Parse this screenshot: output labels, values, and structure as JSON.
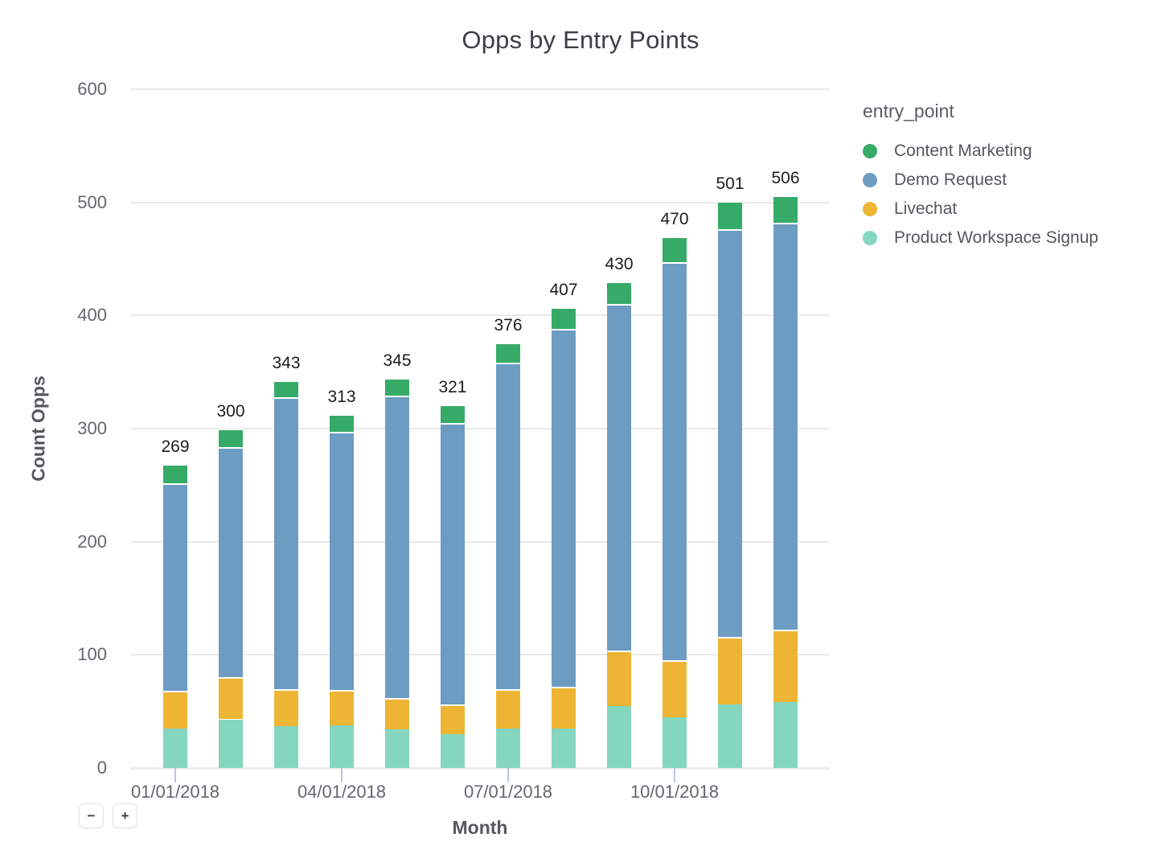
{
  "chart": {
    "title": "Opps by Entry Points",
    "xlabel": "Month",
    "ylabel": "Count Opps"
  },
  "legend": {
    "title": "entry_point",
    "items": [
      {
        "label": "Content Marketing",
        "color": "#36ab68"
      },
      {
        "label": "Demo Request",
        "color": "#6d9cc3"
      },
      {
        "label": "Livechat",
        "color": "#edb533"
      },
      {
        "label": "Product Workspace Signup",
        "color": "#85d6bf"
      }
    ]
  },
  "controls": {
    "zoom_out_label": "−",
    "zoom_in_label": "+"
  },
  "chart_data": {
    "type": "bar",
    "stacked": true,
    "title": "Opps by Entry Points",
    "xlabel": "Month",
    "ylabel": "Count Opps",
    "x": [
      "01/01/2018",
      "02/01/2018",
      "03/01/2018",
      "04/01/2018",
      "05/01/2018",
      "06/01/2018",
      "07/01/2018",
      "08/01/2018",
      "09/01/2018",
      "10/01/2018",
      "11/01/2018",
      "12/01/2018"
    ],
    "x_tick_labels": [
      "01/01/2018",
      "04/01/2018",
      "07/01/2018",
      "10/01/2018"
    ],
    "x_tick_positions": [
      0,
      3,
      6,
      9
    ],
    "series": [
      {
        "name": "Product Workspace Signup",
        "color": "#85d6bf",
        "values": [
          35,
          43,
          37,
          38,
          34,
          30,
          35,
          35,
          55,
          45,
          56,
          58
        ]
      },
      {
        "name": "Livechat",
        "color": "#edb533",
        "values": [
          33,
          37,
          33,
          31,
          28,
          26,
          35,
          37,
          49,
          50,
          60,
          64
        ]
      },
      {
        "name": "Demo Request",
        "color": "#6d9cc3",
        "values": [
          184,
          204,
          258,
          228,
          267,
          249,
          288,
          316,
          306,
          352,
          360,
          360
        ]
      },
      {
        "name": "Content Marketing",
        "color": "#36ab68",
        "values": [
          17,
          16,
          15,
          16,
          16,
          16,
          18,
          19,
          20,
          23,
          25,
          24
        ]
      }
    ],
    "totals": [
      269,
      300,
      343,
      313,
      345,
      321,
      376,
      407,
      430,
      470,
      501,
      506
    ],
    "ylim": [
      0,
      600
    ],
    "yticks": [
      0,
      100,
      200,
      300,
      400,
      500,
      600
    ],
    "grid": true,
    "legend_position": "right",
    "stack_order": "bottom-to-top"
  }
}
